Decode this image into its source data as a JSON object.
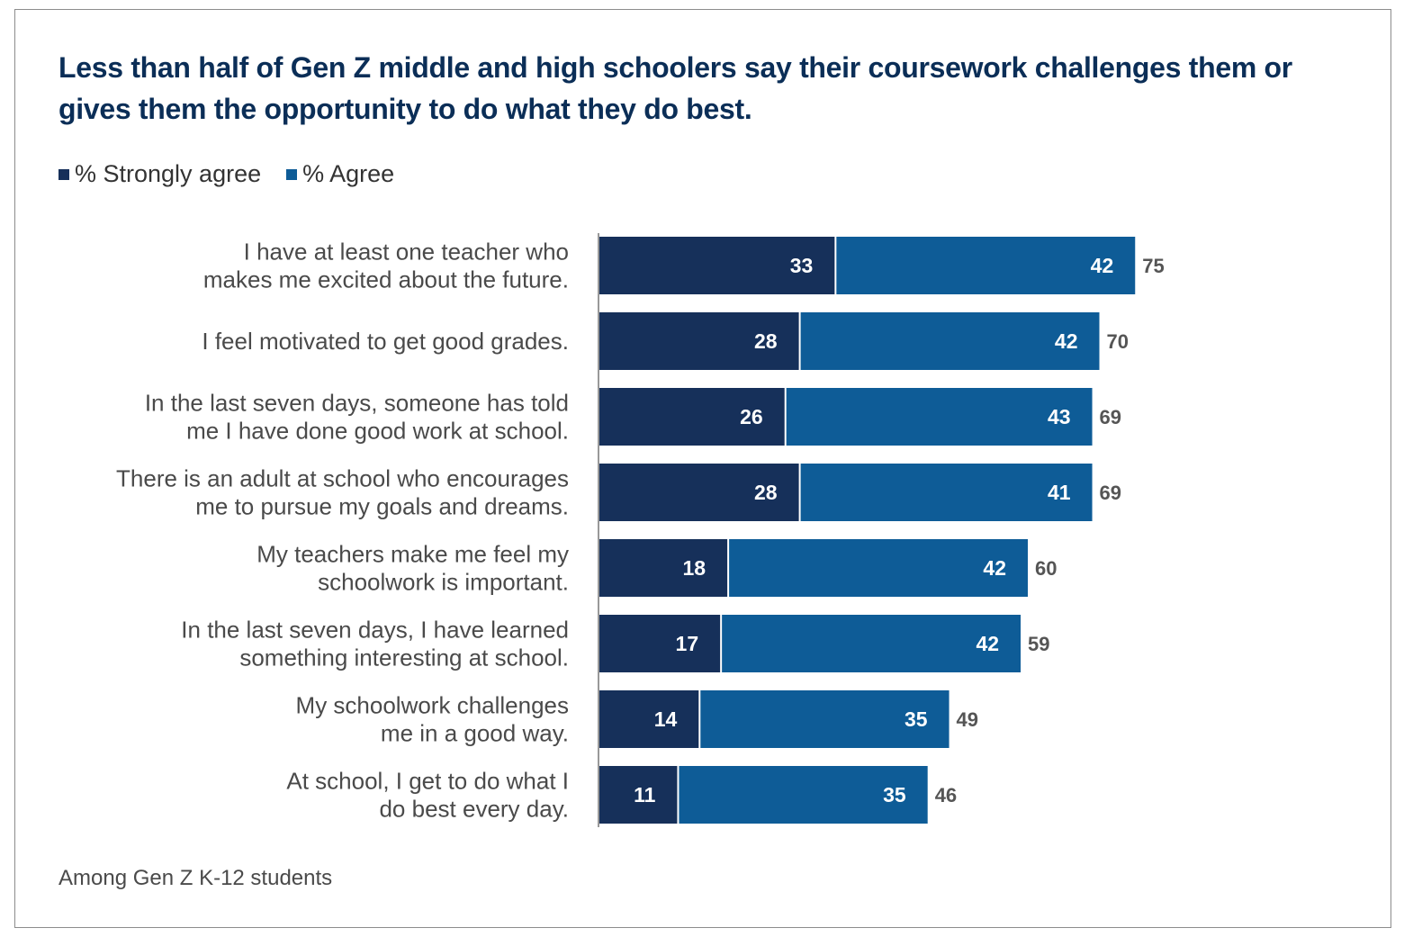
{
  "chart_data": {
    "type": "bar",
    "orientation": "horizontal",
    "stacked": true,
    "title": "Less than half of Gen Z middle and high schoolers say their coursework challenges them or gives them the opportunity to do what they do best.",
    "subtitle": "Among Gen Z K-12 students",
    "legend_position": "top-left",
    "grid": false,
    "xlim": [
      0,
      100
    ],
    "categories": [
      [
        "I have at least one teacher who",
        "makes me excited about the future."
      ],
      [
        "I feel motivated to get good grades."
      ],
      [
        "In the last seven days, someone has told",
        "me I have done good work at school."
      ],
      [
        "There is an adult at school who encourages",
        "me to pursue my goals and dreams."
      ],
      [
        "My teachers make me feel my",
        "schoolwork is important."
      ],
      [
        "In the last seven days, I have learned",
        "something interesting at school."
      ],
      [
        "My schoolwork challenges",
        "me in a good way."
      ],
      [
        "At school, I get to do what I",
        "do best every day."
      ]
    ],
    "series": [
      {
        "name": "% Strongly agree",
        "color": "#16305a",
        "values": [
          33,
          28,
          26,
          28,
          18,
          17,
          14,
          11
        ]
      },
      {
        "name": "% Agree",
        "color": "#0e5c97",
        "values": [
          42,
          42,
          43,
          41,
          42,
          42,
          35,
          35
        ]
      }
    ],
    "totals": [
      75,
      70,
      69,
      69,
      60,
      59,
      49,
      46
    ]
  }
}
